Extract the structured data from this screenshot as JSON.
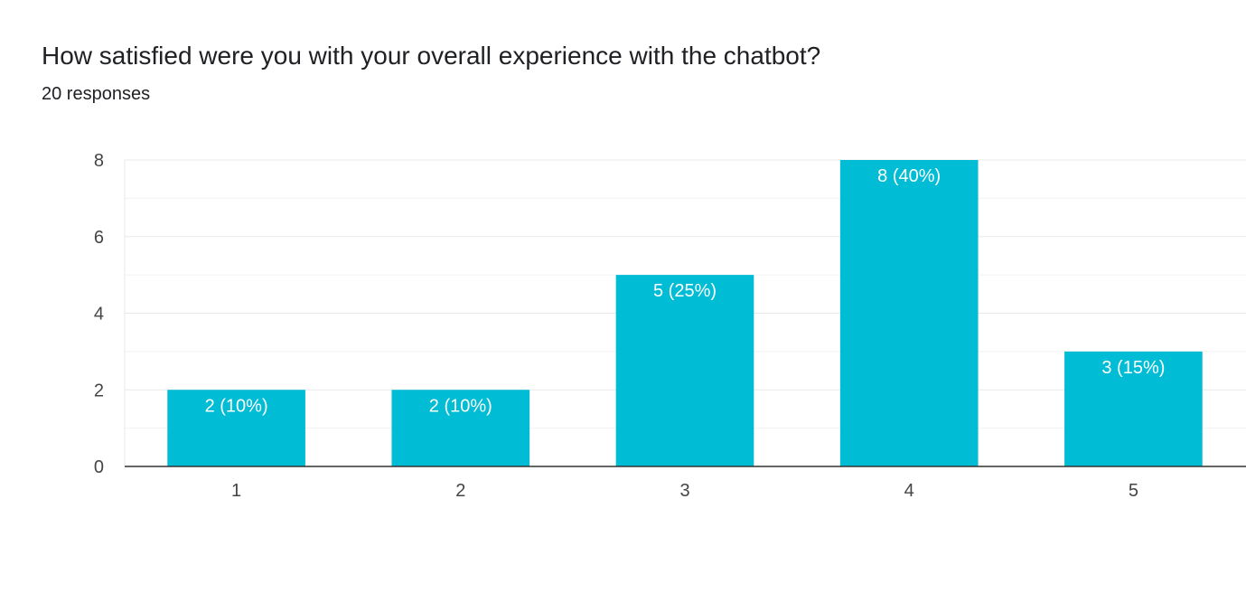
{
  "question": {
    "title": "How satisfied were you with your overall experience with the chatbot?",
    "responses": "20 responses"
  },
  "chart_data": {
    "type": "bar",
    "categories": [
      "1",
      "2",
      "3",
      "4",
      "5"
    ],
    "values": [
      2,
      2,
      5,
      8,
      3
    ],
    "data_labels": [
      "2 (10%)",
      "2 (10%)",
      "5 (25%)",
      "8 (40%)",
      "3 (15%)"
    ],
    "y_ticks": [
      "0",
      "2",
      "4",
      "6",
      "8"
    ],
    "ylim": [
      0,
      8
    ],
    "grid": true,
    "legend": "none",
    "bar_color": "#00bcd4",
    "label_color": "#ffffff",
    "grid_color": "#e8e8e8",
    "axis_color": "#333333",
    "tick_label_color": "#444444"
  }
}
